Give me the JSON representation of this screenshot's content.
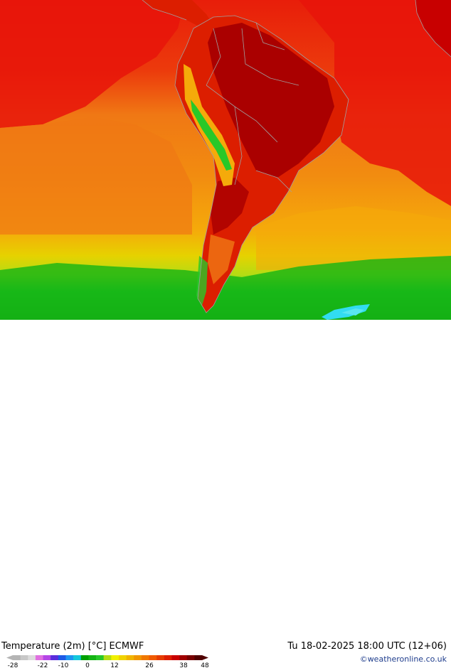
{
  "map": {
    "title": "Temperature (2m) [°C] ECMWF",
    "datetime": "Tu 18-02-2025 18:00 UTC (12+06)",
    "credit": "©weatheronline.co.uk"
  },
  "legend": {
    "ticks": [
      "-28",
      "-22",
      "-10",
      "0",
      "12",
      "26",
      "38",
      "48"
    ],
    "colors": [
      "#b4b4b4",
      "#c8c8c8",
      "#dcdcdc",
      "#e070e0",
      "#b446e6",
      "#5a2ddc",
      "#1e5ae6",
      "#1e96f0",
      "#14c8dc",
      "#00a000",
      "#14b414",
      "#28c828",
      "#b4dc14",
      "#f0f000",
      "#f0d200",
      "#f0b400",
      "#f09600",
      "#f07800",
      "#f05a00",
      "#e63c00",
      "#dc1e00",
      "#c80000",
      "#a00000",
      "#780000",
      "#500000"
    ]
  },
  "colors": {
    "hot": "#e8140a",
    "very_hot": "#aa0000",
    "warm": "#f07814",
    "mild": "#f5aa0a",
    "cool": "#e6d200",
    "cold": "#14b414",
    "ice": "#32dcf0",
    "border": "#a0a0a0"
  }
}
